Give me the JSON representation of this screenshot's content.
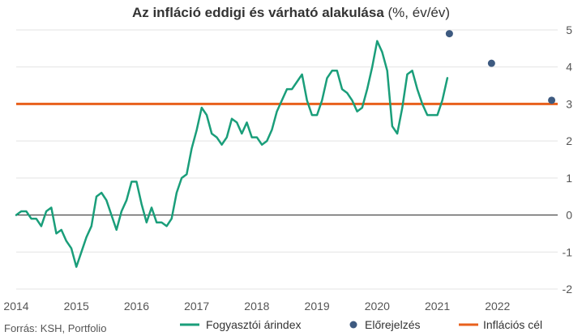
{
  "chart_data": {
    "type": "line",
    "title_bold": "Az infláció eddigi és várható alakulása",
    "title_suffix": " (%, év/év)",
    "xlabel": "",
    "ylabel": "",
    "ylim": [
      -2,
      5
    ],
    "xlim": [
      2014,
      2023
    ],
    "y_ticks": [
      "-2",
      "-1",
      "0",
      "1",
      "2",
      "3",
      "4",
      "5"
    ],
    "x_ticks": [
      "2014",
      "2015",
      "2016",
      "2017",
      "2018",
      "2019",
      "2020",
      "2021",
      "2022"
    ],
    "y_axis_side": "right",
    "grid": "horizontal",
    "legend_position": "bottom",
    "source": "Forrás: KSH, Portfolio",
    "colors": {
      "cpi": "#1a9e7a",
      "forecast": "#3d5a80",
      "target": "#e8601c",
      "zero": "#222222",
      "grid": "#e3e3e3"
    },
    "series": [
      {
        "name": "Fogyasztói árindex",
        "kind": "line",
        "x": [
          2014.0,
          2014.0833,
          2014.1667,
          2014.25,
          2014.3333,
          2014.4167,
          2014.5,
          2014.5833,
          2014.6667,
          2014.75,
          2014.8333,
          2014.9167,
          2015.0,
          2015.0833,
          2015.1667,
          2015.25,
          2015.3333,
          2015.4167,
          2015.5,
          2015.5833,
          2015.6667,
          2015.75,
          2015.8333,
          2015.9167,
          2016.0,
          2016.0833,
          2016.1667,
          2016.25,
          2016.3333,
          2016.4167,
          2016.5,
          2016.5833,
          2016.6667,
          2016.75,
          2016.8333,
          2016.9167,
          2017.0,
          2017.0833,
          2017.1667,
          2017.25,
          2017.3333,
          2017.4167,
          2017.5,
          2017.5833,
          2017.6667,
          2017.75,
          2017.8333,
          2017.9167,
          2018.0,
          2018.0833,
          2018.1667,
          2018.25,
          2018.3333,
          2018.4167,
          2018.5,
          2018.5833,
          2018.6667,
          2018.75,
          2018.8333,
          2018.9167,
          2019.0,
          2019.0833,
          2019.1667,
          2019.25,
          2019.3333,
          2019.4167,
          2019.5,
          2019.5833,
          2019.6667,
          2019.75,
          2019.8333,
          2019.9167,
          2020.0,
          2020.0833,
          2020.1667,
          2020.25,
          2020.3333,
          2020.4167,
          2020.5,
          2020.5833,
          2020.6667,
          2020.75,
          2020.8333,
          2020.9167,
          2021.0,
          2021.0833,
          2021.1667
        ],
        "values": [
          0.0,
          0.1,
          0.1,
          -0.1,
          -0.1,
          -0.3,
          0.1,
          0.2,
          -0.5,
          -0.4,
          -0.7,
          -0.9,
          -1.4,
          -1.0,
          -0.6,
          -0.3,
          0.5,
          0.6,
          0.4,
          0.0,
          -0.4,
          0.1,
          0.4,
          0.9,
          0.9,
          0.3,
          -0.2,
          0.2,
          -0.2,
          -0.2,
          -0.3,
          -0.1,
          0.6,
          1.0,
          1.1,
          1.8,
          2.3,
          2.9,
          2.7,
          2.2,
          2.1,
          1.9,
          2.1,
          2.6,
          2.5,
          2.2,
          2.5,
          2.1,
          2.1,
          1.9,
          2.0,
          2.3,
          2.8,
          3.1,
          3.4,
          3.4,
          3.6,
          3.8,
          3.1,
          2.7,
          2.7,
          3.1,
          3.7,
          3.9,
          3.9,
          3.4,
          3.3,
          3.1,
          2.8,
          2.9,
          3.4,
          4.0,
          4.7,
          4.4,
          3.9,
          2.4,
          2.2,
          2.9,
          3.8,
          3.9,
          3.4,
          3.0,
          2.7,
          2.7,
          2.7,
          3.1,
          3.7
        ]
      },
      {
        "name": "Előrejelzés",
        "kind": "scatter",
        "x": [
          2021.2,
          2021.9,
          2022.9
        ],
        "values": [
          4.9,
          4.1,
          3.1
        ]
      },
      {
        "name": "Inflációs cél",
        "kind": "hline",
        "x": [
          2014,
          2023
        ],
        "values": [
          3.0,
          3.0
        ]
      }
    ]
  }
}
